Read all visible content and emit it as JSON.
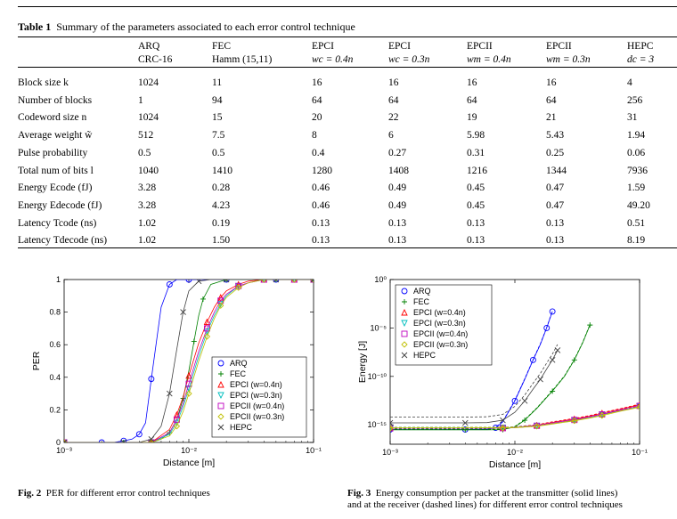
{
  "table": {
    "caption_label": "Table 1",
    "caption_text": "Summary of the parameters associated to each error control technique",
    "columns": [
      {
        "l1": "ARQ",
        "l2": "CRC-16"
      },
      {
        "l1": "FEC",
        "l2": "Hamm (15,11)"
      },
      {
        "l1": "EPCI",
        "l2": "wc = 0.4n"
      },
      {
        "l1": "EPCI",
        "l2": "wc = 0.3n"
      },
      {
        "l1": "EPCII",
        "l2": "wm = 0.4n"
      },
      {
        "l1": "EPCII",
        "l2": "wm = 0.3n"
      },
      {
        "l1": "HEPC",
        "l2": "dc = 3"
      }
    ],
    "rows": [
      {
        "label": "Block size k",
        "values": [
          "1024",
          "11",
          "16",
          "16",
          "16",
          "16",
          "4"
        ]
      },
      {
        "label": "Number of blocks",
        "values": [
          "1",
          "94",
          "64",
          "64",
          "64",
          "64",
          "256"
        ]
      },
      {
        "label": "Codeword size n",
        "values": [
          "1024",
          "15",
          "20",
          "22",
          "19",
          "21",
          "31"
        ]
      },
      {
        "label": "Average weight w̃",
        "values": [
          "512",
          "7.5",
          "8",
          "6",
          "5.98",
          "5.43",
          "1.94"
        ]
      },
      {
        "label": "Pulse probability",
        "values": [
          "0.5",
          "0.5",
          "0.4",
          "0.27",
          "0.31",
          "0.25",
          "0.06"
        ]
      },
      {
        "label": "Total num of bits l",
        "values": [
          "1040",
          "1410",
          "1280",
          "1408",
          "1216",
          "1344",
          "7936"
        ]
      },
      {
        "label": "Energy Ecode (fJ)",
        "values": [
          "3.28",
          "0.28",
          "0.46",
          "0.49",
          "0.45",
          "0.47",
          "1.59"
        ]
      },
      {
        "label": "Energy Edecode (fJ)",
        "values": [
          "3.28",
          "4.23",
          "0.46",
          "0.49",
          "0.45",
          "0.47",
          "49.20"
        ]
      },
      {
        "label": "Latency Tcode (ns)",
        "values": [
          "1.02",
          "0.19",
          "0.13",
          "0.13",
          "0.13",
          "0.13",
          "0.51"
        ]
      },
      {
        "label": "Latency Tdecode (ns)",
        "values": [
          "1.02",
          "1.50",
          "0.13",
          "0.13",
          "0.13",
          "0.13",
          "8.19"
        ]
      }
    ]
  },
  "colors": {
    "ARQ": "#0000ff",
    "FEC": "#008000",
    "EPCI (w=0.4n)": "#ff0000",
    "EPCI (w=0.3n)": "#00bfbf",
    "EPCII (w=0.4n)": "#bf00bf",
    "EPCII (w=0.3n)": "#bfbf00",
    "HEPC": "#404040"
  },
  "chart_data": [
    {
      "type": "line",
      "title": "",
      "xlabel": "Distance [m]",
      "ylabel": "PER",
      "xscale": "log",
      "xlim": [
        0.001,
        0.1
      ],
      "ylim": [
        0,
        1
      ],
      "x_ticks": [
        "10⁻³",
        "10⁻²",
        "10⁻¹"
      ],
      "y_ticks": [
        "0",
        "0.2",
        "0.4",
        "0.6",
        "0.8",
        "1"
      ],
      "legend": "bottom-right",
      "series": [
        {
          "name": "ARQ",
          "marker": "○",
          "x": [
            0.001,
            0.0015,
            0.002,
            0.0025,
            0.003,
            0.0035,
            0.004,
            0.0045,
            0.005,
            0.006,
            0.007,
            0.008,
            0.01,
            0.015,
            0.02,
            0.03,
            0.05,
            0.1
          ],
          "y": [
            0,
            0,
            0,
            0,
            0.01,
            0.02,
            0.05,
            0.12,
            0.39,
            0.83,
            0.97,
            1,
            1,
            1,
            1,
            1,
            1,
            1
          ]
        },
        {
          "name": "FEC",
          "marker": "+",
          "x": [
            0.001,
            0.002,
            0.003,
            0.004,
            0.005,
            0.006,
            0.007,
            0.008,
            0.009,
            0.01,
            0.011,
            0.012,
            0.013,
            0.015,
            0.02,
            0.03,
            0.05,
            0.1
          ],
          "y": [
            0,
            0,
            0,
            0,
            0,
            0.02,
            0.06,
            0.14,
            0.27,
            0.44,
            0.62,
            0.78,
            0.88,
            0.97,
            1,
            1,
            1,
            1
          ]
        },
        {
          "name": "EPCI (w=0.4n)",
          "marker": "△",
          "x": [
            0.001,
            0.003,
            0.005,
            0.007,
            0.008,
            0.009,
            0.01,
            0.012,
            0.014,
            0.016,
            0.018,
            0.02,
            0.025,
            0.03,
            0.04,
            0.05,
            0.07,
            0.1
          ],
          "y": [
            0,
            0,
            0,
            0.08,
            0.17,
            0.28,
            0.41,
            0.61,
            0.74,
            0.83,
            0.89,
            0.93,
            0.97,
            0.99,
            1,
            1,
            1,
            1
          ]
        },
        {
          "name": "EPCI (w=0.3n)",
          "marker": "▽",
          "x": [
            0.001,
            0.003,
            0.005,
            0.007,
            0.008,
            0.009,
            0.01,
            0.012,
            0.014,
            0.016,
            0.018,
            0.02,
            0.025,
            0.03,
            0.04,
            0.05,
            0.07,
            0.1
          ],
          "y": [
            0,
            0,
            0,
            0.05,
            0.12,
            0.22,
            0.33,
            0.53,
            0.68,
            0.78,
            0.85,
            0.9,
            0.96,
            0.98,
            1,
            1,
            1,
            1
          ]
        },
        {
          "name": "EPCII (w=0.4n)",
          "marker": "□",
          "x": [
            0.001,
            0.003,
            0.005,
            0.007,
            0.008,
            0.009,
            0.01,
            0.012,
            0.014,
            0.016,
            0.018,
            0.02,
            0.025,
            0.03,
            0.04,
            0.05,
            0.07,
            0.1
          ],
          "y": [
            0,
            0,
            0,
            0.06,
            0.14,
            0.24,
            0.36,
            0.56,
            0.7,
            0.8,
            0.87,
            0.91,
            0.96,
            0.98,
            1,
            1,
            1,
            1
          ]
        },
        {
          "name": "EPCII (w=0.3n)",
          "marker": "◇",
          "x": [
            0.001,
            0.003,
            0.005,
            0.007,
            0.008,
            0.009,
            0.01,
            0.012,
            0.014,
            0.016,
            0.018,
            0.02,
            0.025,
            0.03,
            0.04,
            0.05,
            0.07,
            0.1
          ],
          "y": [
            0,
            0,
            0,
            0.04,
            0.1,
            0.19,
            0.3,
            0.5,
            0.65,
            0.76,
            0.84,
            0.89,
            0.95,
            0.98,
            1,
            1,
            1,
            1
          ]
        },
        {
          "name": "HEPC",
          "marker": "×",
          "x": [
            0.001,
            0.002,
            0.003,
            0.004,
            0.005,
            0.006,
            0.007,
            0.008,
            0.009,
            0.01,
            0.012,
            0.015,
            0.02,
            0.03,
            0.05,
            0.1
          ],
          "y": [
            0,
            0,
            0,
            0,
            0.02,
            0.1,
            0.3,
            0.57,
            0.8,
            0.93,
            0.99,
            1,
            1,
            1,
            1,
            1
          ]
        }
      ]
    },
    {
      "type": "line",
      "title": "",
      "xlabel": "Distance [m]",
      "ylabel": "Energy [J]",
      "xscale": "log",
      "yscale": "log",
      "xlim": [
        0.001,
        0.1
      ],
      "ylim": [
        1e-17,
        1
      ],
      "x_ticks": [
        "10⁻³",
        "10⁻²",
        "10⁻¹"
      ],
      "y_ticks": [
        "10⁰",
        "10⁻⁵",
        "10⁻¹⁰",
        "10⁻¹⁵"
      ],
      "legend": "top-left",
      "series": [
        {
          "name": "ARQ",
          "marker": "○",
          "x": [
            0.001,
            0.002,
            0.004,
            0.006,
            0.007,
            0.008,
            0.01,
            0.012,
            0.014,
            0.016,
            0.018,
            0.02
          ],
          "y": [
            3.3e-16,
            3.3e-16,
            3.3e-16,
            3.5e-16,
            5e-16,
            2e-15,
            3e-13,
            5e-11,
            5e-09,
            2e-07,
            1e-05,
            0.0005
          ]
        },
        {
          "name": "FEC",
          "marker": "+",
          "x": [
            0.001,
            0.002,
            0.004,
            0.006,
            0.008,
            0.01,
            0.012,
            0.015,
            0.02,
            0.025,
            0.03,
            0.035,
            0.04
          ],
          "y": [
            3e-16,
            3e-16,
            3e-16,
            3e-16,
            3.2e-16,
            6e-16,
            3e-15,
            5e-14,
            3e-12,
            1e-10,
            5e-09,
            3e-07,
            2e-05
          ]
        },
        {
          "name": "EPCI (w=0.4n)",
          "marker": "△",
          "x": [
            0.001,
            0.004,
            0.008,
            0.01,
            0.015,
            0.02,
            0.03,
            0.04,
            0.05,
            0.07,
            0.1
          ],
          "y": [
            4.6e-16,
            4.6e-16,
            4.8e-16,
            5.5e-16,
            9e-16,
            1.8e-15,
            4e-15,
            8e-15,
            1.6e-14,
            4e-14,
            1.2e-13
          ]
        },
        {
          "name": "EPCI (w=0.3n)",
          "marker": "▽",
          "x": [
            0.001,
            0.004,
            0.008,
            0.01,
            0.015,
            0.02,
            0.03,
            0.04,
            0.05,
            0.07,
            0.1
          ],
          "y": [
            4.9e-16,
            4.9e-16,
            5e-16,
            5.3e-16,
            8e-16,
            1.4e-15,
            3e-15,
            6e-15,
            1.1e-14,
            3e-14,
            8e-14
          ]
        },
        {
          "name": "EPCII (w=0.4n)",
          "marker": "□",
          "x": [
            0.001,
            0.004,
            0.008,
            0.01,
            0.015,
            0.02,
            0.03,
            0.04,
            0.05,
            0.07,
            0.1
          ],
          "y": [
            4.5e-16,
            4.5e-16,
            4.6e-16,
            5e-16,
            8e-16,
            1.5e-15,
            3.2e-15,
            6.5e-15,
            1.2e-14,
            3.2e-14,
            9e-14
          ]
        },
        {
          "name": "EPCII (w=0.3n)",
          "marker": "◇",
          "x": [
            0.001,
            0.004,
            0.008,
            0.01,
            0.015,
            0.02,
            0.03,
            0.04,
            0.05,
            0.07,
            0.1
          ],
          "y": [
            4.7e-16,
            4.7e-16,
            4.8e-16,
            5e-16,
            7e-16,
            1.2e-15,
            2.6e-15,
            5e-15,
            9e-15,
            2.5e-14,
            6.5e-14
          ]
        },
        {
          "name": "HEPC",
          "marker": "×",
          "x": [
            0.001,
            0.002,
            0.004,
            0.006,
            0.008,
            0.01,
            0.012,
            0.014,
            0.016,
            0.018,
            0.02,
            0.022
          ],
          "y": [
            1.6e-15,
            1.6e-15,
            1.6e-15,
            1.7e-15,
            3e-15,
            2e-14,
            3e-13,
            5e-12,
            5e-11,
            6e-10,
            5e-09,
            5e-08
          ]
        }
      ]
    }
  ],
  "fig2_caption": {
    "label": "Fig. 2",
    "text": "PER for different error control techniques"
  },
  "fig3_caption": {
    "label": "Fig. 3",
    "text1": "Energy consumption per packet at the transmitter (solid lines)",
    "text2": "and at the receiver (dashed lines) for different error control techniques"
  }
}
